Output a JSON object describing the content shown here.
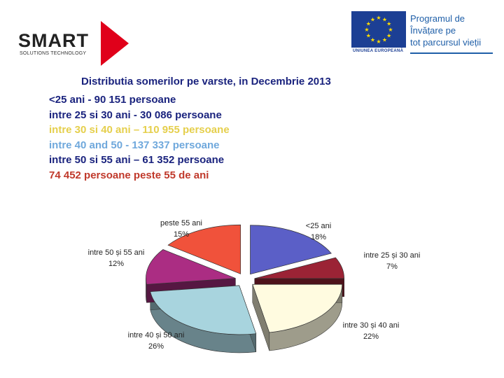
{
  "header": {
    "smart_logo": {
      "word": "SMART",
      "subtitle": "SOLUTIONS TECHNOLOGY"
    },
    "eu_logo": {
      "caption": "UNIUNEA EUROPEANĂ",
      "program_lines": [
        "Programul de",
        "Învățare pe",
        "tot parcursul vieții"
      ]
    }
  },
  "title": "Distributia somerilor pe varste, in Decembrie 2013",
  "lines": [
    {
      "text": "<25 ani - 90 151 persoane",
      "color": "#1a237e"
    },
    {
      "text": "intre 25 si 30 ani - 30 086 persoane",
      "color": "#1a237e"
    },
    {
      "text": "intre 30 si 40 ani – 110 955 persoane",
      "color": "#e5cf4c"
    },
    {
      "text": "intre 40 and 50 - 137 337 persoane",
      "color": "#6fa8dc"
    },
    {
      "text": "intre 50 si 55 ani – 61 352 persoane",
      "color": "#1a237e"
    },
    {
      "text": "74 452 persoane peste 55 de ani",
      "color": "#c0392b"
    }
  ],
  "chart_data": {
    "type": "pie",
    "title": "",
    "slices": [
      {
        "label": "<25 ani",
        "value": 18,
        "display": "18%",
        "color": "#5b5fc7"
      },
      {
        "label": "intre 25 si 30 ani",
        "value": 7,
        "display": "7%",
        "color": "#9b2335"
      },
      {
        "label": "intre 30 si 40 ani",
        "value": 22,
        "display": "22%",
        "color": "#fffbe0"
      },
      {
        "label": "intre 40 si 50 ani",
        "value": 26,
        "display": "26%",
        "color": "#a8d4de"
      },
      {
        "label": "intre 50 si 55 ani",
        "value": 12,
        "display": "12%",
        "color": "#ab2d83"
      },
      {
        "label": "peste 55 ani",
        "value": 15,
        "display": "15%",
        "color": "#f0523b"
      }
    ]
  }
}
